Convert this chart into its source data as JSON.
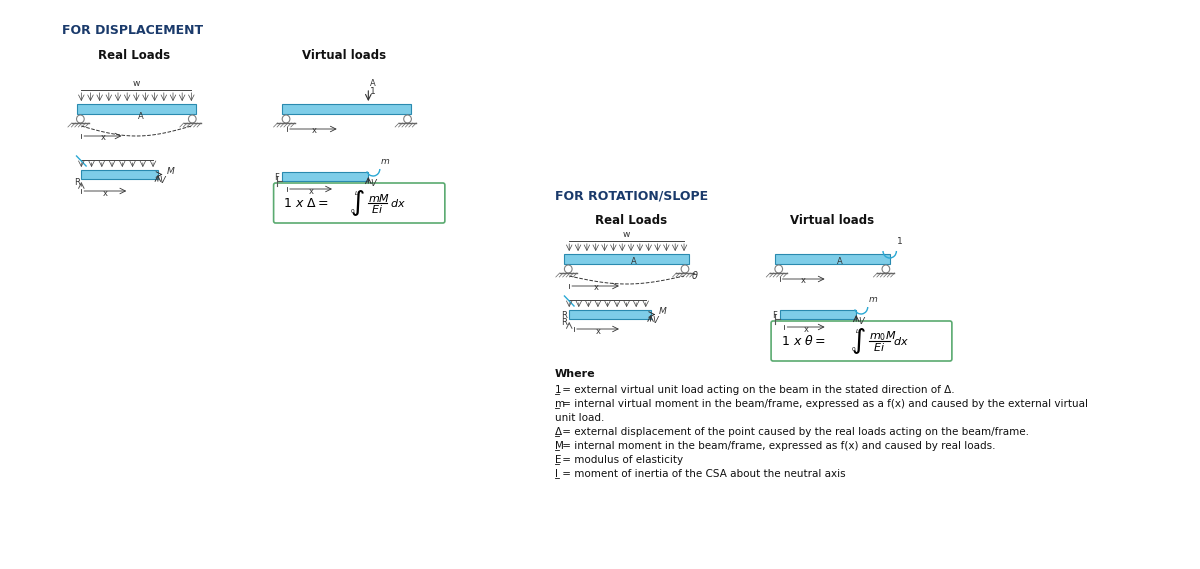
{
  "bg_color": "#ffffff",
  "title_displacement": "FOR DISPLACEMENT",
  "title_rotation": "FOR ROTATION/SLOPE",
  "label_real_loads_1": "Real Loads",
  "label_virtual_loads_1": "Virtual loads",
  "label_real_loads_2": "Real Loads",
  "label_virtual_loads_2": "Virtual loads",
  "where_title": "Where",
  "where_lines": [
    [
      "1",
      " = external virtual unit load acting on the beam in the stated direction of Δ."
    ],
    [
      "m",
      " = internal virtual moment in the beam/frame, expressed as a f(x) and caused by the external virtual"
    ],
    [
      "",
      "unit load."
    ],
    [
      "Δ",
      " = external displacement of the point caused by the real loads acting on the beam/frame."
    ],
    [
      "M",
      " = internal moment in the beam/frame, expressed as f(x) and caused by real loads."
    ],
    [
      "E",
      " = modulus of elasticity"
    ],
    [
      "I",
      " = moment of inertia of the CSA about the neutral axis"
    ]
  ],
  "title_color": "#1a3a6b",
  "title_fontsize": 9,
  "label_fontsize": 8.5,
  "where_fontsize": 7.5,
  "where_title_fontsize": 8
}
